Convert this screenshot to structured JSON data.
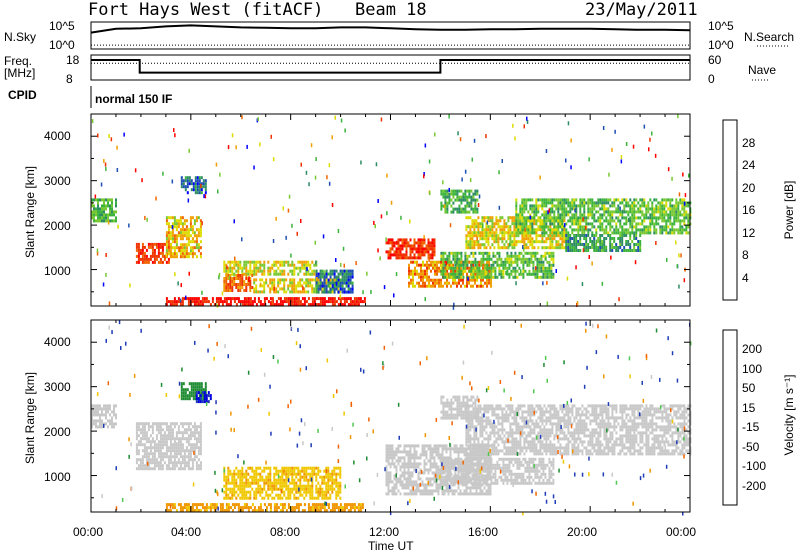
{
  "header": {
    "station": "Fort Hays West (fitACF)",
    "beam": "Beam 18",
    "date": "23/May/2011"
  },
  "strips": {
    "nsky_label": "N.Sky",
    "nsky_ticks": [
      "10^5",
      "10^0"
    ],
    "nsearch_label": "N.Search",
    "freq_label_1": "Freq.",
    "freq_label_2": "[MHz]",
    "freq_ticks": [
      "18",
      "8"
    ],
    "nave_label": "Nave",
    "nave_ticks": [
      "60",
      "0"
    ],
    "cpid_label": "CPID",
    "cpid_value": "normal 150 IF"
  },
  "axes": {
    "ylabel": "Slant Range [km]",
    "xlabel": "Time UT",
    "x_ticks": [
      "00:00",
      "04:00",
      "08:00",
      "12:00",
      "16:00",
      "20:00",
      "00:00"
    ],
    "y_ticks": [
      "1000",
      "2000",
      "3000",
      "4000"
    ]
  },
  "power_colorbar": {
    "label": "Power [dB]",
    "ticks": [
      "4",
      "8",
      "12",
      "16",
      "20",
      "24",
      "28"
    ],
    "colors": [
      "#0000ff",
      "#1e50b4",
      "#2d8c64",
      "#3cb43c",
      "#78c832",
      "#dcdc00",
      "#f0a000",
      "#f06400",
      "#f03200",
      "#ff0000"
    ]
  },
  "velocity_colorbar": {
    "label": "Velocity [m s⁻¹]",
    "ticks": [
      "200",
      "100",
      "50",
      "15",
      "-15",
      "-50",
      "-100",
      "-200"
    ],
    "colors": [
      "#0000dc",
      "#1e3cb4",
      "#1e8c32",
      "#50c850",
      "#c8c8c8",
      "#f0c800",
      "#f09600",
      "#f06400",
      "#ff0000"
    ]
  },
  "chart_data": [
    {
      "type": "line",
      "name": "N.Sky / N.Search",
      "x_range_hours": [
        0,
        24
      ],
      "x": [
        0,
        1,
        2,
        3,
        4,
        5,
        6,
        7,
        8,
        9,
        10,
        11,
        12,
        13,
        14,
        15,
        16,
        17,
        18,
        19,
        20,
        21,
        22,
        23,
        24
      ],
      "nsky_log10": [
        3.2,
        4.0,
        4.1,
        4.5,
        4.7,
        4.5,
        4.3,
        4.2,
        4.1,
        4.1,
        4.3,
        4.3,
        4.1,
        3.9,
        3.8,
        3.8,
        3.9,
        3.9,
        4.0,
        4.0,
        4.0,
        3.9,
        3.8,
        3.8,
        3.7
      ],
      "nsearch_log10": [
        0.6,
        0.6,
        0.6,
        0.6,
        0.6,
        0.6,
        0.6,
        0.6,
        0.6,
        0.6,
        0.6,
        0.6,
        0.6,
        0.6,
        0.6,
        0.6,
        0.6,
        0.6,
        0.6,
        0.6,
        0.6,
        0.6,
        0.6,
        0.6,
        0.6
      ]
    },
    {
      "type": "line",
      "name": "Freq / Nave",
      "freq_steps": [
        [
          0,
          16.5
        ],
        [
          1.95,
          16.5
        ],
        [
          1.95,
          10.2
        ],
        [
          14,
          10.2
        ],
        [
          14,
          16.5
        ],
        [
          24,
          16.5
        ]
      ],
      "nave_range": [
        0,
        60
      ],
      "freq_range": [
        8,
        18
      ],
      "nave_steps": [
        [
          0,
          41
        ],
        [
          1.95,
          41
        ],
        [
          1.95,
          41
        ],
        [
          14,
          41
        ],
        [
          14,
          41
        ],
        [
          24,
          41
        ]
      ]
    },
    {
      "type": "heatmap",
      "name": "Power",
      "x_range_hours": [
        0,
        24
      ],
      "y_range_km": [
        180,
        4500
      ],
      "regions": [
        {
          "t0": 0.0,
          "t1": 1.0,
          "r0": 2100,
          "r1": 2600,
          "v": 11
        },
        {
          "t0": 1.8,
          "t1": 3.2,
          "r0": 1150,
          "r1": 1600,
          "v": 25
        },
        {
          "t0": 3.0,
          "t1": 4.4,
          "r0": 1300,
          "r1": 2200,
          "v": 18
        },
        {
          "t0": 3.6,
          "t1": 4.6,
          "r0": 2700,
          "r1": 3100,
          "v": 6
        },
        {
          "t0": 5.3,
          "t1": 9.0,
          "r0": 900,
          "r1": 1200,
          "v": 16
        },
        {
          "t0": 5.3,
          "t1": 6.5,
          "r0": 500,
          "r1": 900,
          "v": 22
        },
        {
          "t0": 6.5,
          "t1": 10.0,
          "r0": 500,
          "r1": 800,
          "v": 17
        },
        {
          "t0": 3.0,
          "t1": 11.0,
          "r0": 200,
          "r1": 380,
          "v": 28
        },
        {
          "t0": 9.0,
          "t1": 10.5,
          "r0": 500,
          "r1": 1000,
          "v": 6
        },
        {
          "t0": 11.8,
          "t1": 13.8,
          "r0": 1250,
          "r1": 1700,
          "v": 26
        },
        {
          "t0": 12.7,
          "t1": 16.0,
          "r0": 600,
          "r1": 1200,
          "v": 21
        },
        {
          "t0": 14.0,
          "t1": 18.5,
          "r0": 800,
          "r1": 1400,
          "v": 12
        },
        {
          "t0": 14.0,
          "t1": 15.5,
          "r0": 2300,
          "r1": 2800,
          "v": 10
        },
        {
          "t0": 15.0,
          "t1": 19.0,
          "r0": 1500,
          "r1": 2200,
          "v": 17
        },
        {
          "t0": 17.0,
          "t1": 24.0,
          "r0": 1800,
          "r1": 2600,
          "v": 12
        },
        {
          "t0": 19.0,
          "t1": 22.0,
          "r0": 1400,
          "r1": 1800,
          "v": 9
        }
      ]
    },
    {
      "type": "heatmap",
      "name": "Velocity",
      "x_range_hours": [
        0,
        24
      ],
      "y_range_km": [
        180,
        4500
      ],
      "regions": [
        {
          "t0": 0.0,
          "t1": 1.0,
          "r0": 2100,
          "r1": 2600,
          "v": 0
        },
        {
          "t0": 1.8,
          "t1": 4.4,
          "r0": 1150,
          "r1": 2200,
          "v": 0
        },
        {
          "t0": 3.6,
          "t1": 4.6,
          "r0": 2700,
          "r1": 3100,
          "v": 80
        },
        {
          "t0": 4.2,
          "t1": 4.8,
          "r0": 2650,
          "r1": 2900,
          "v": 210
        },
        {
          "t0": 5.3,
          "t1": 10.0,
          "r0": 500,
          "r1": 1200,
          "v": -40
        },
        {
          "t0": 3.0,
          "t1": 11.0,
          "r0": 200,
          "r1": 380,
          "v": -60
        },
        {
          "t0": 11.8,
          "t1": 16.0,
          "r0": 600,
          "r1": 1700,
          "v": 0
        },
        {
          "t0": 14.0,
          "t1": 18.5,
          "r0": 800,
          "r1": 1400,
          "v": 0
        },
        {
          "t0": 14.0,
          "t1": 15.5,
          "r0": 2300,
          "r1": 2800,
          "v": 0
        },
        {
          "t0": 15.0,
          "t1": 24.0,
          "r0": 1500,
          "r1": 2600,
          "v": 0
        }
      ]
    }
  ]
}
